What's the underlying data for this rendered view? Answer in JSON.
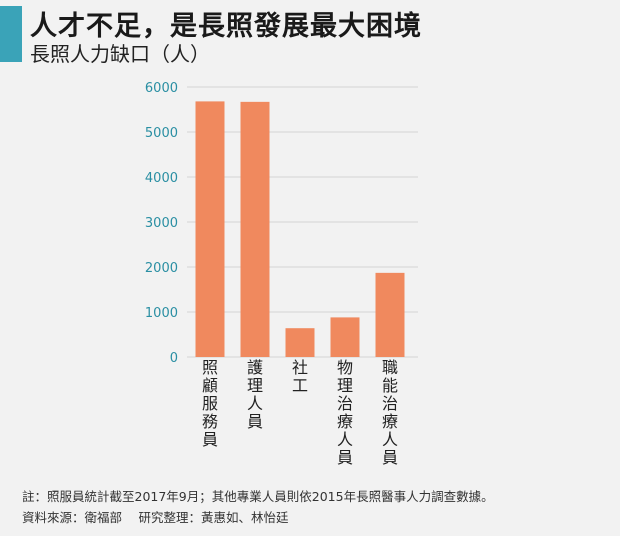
{
  "header": {
    "title": "人才不足，是長照發展最大困境",
    "subtitle": "長照人力缺口（人）"
  },
  "colors": {
    "accent": "#3aa3b8",
    "bar": "#f0895e",
    "tick_label": "#2a8fa3",
    "grid": "#d4d4d4"
  },
  "chart_data": {
    "type": "bar",
    "categories": [
      "照顧服務員",
      "護理人員",
      "社工",
      "物理治療人員",
      "職能治療人員"
    ],
    "values": [
      5680,
      5670,
      640,
      880,
      1870
    ],
    "ylim": [
      0,
      6000
    ],
    "yticks": [
      "0",
      "1000",
      "2000",
      "3000",
      "4000",
      "5000",
      "6000"
    ],
    "grid": true,
    "title": "長照人力缺口（人）",
    "xlabel": "",
    "ylabel": ""
  },
  "footer": {
    "note": "註：照服員統計截至2017年9月；其他專業人員則依2015年長照醫事人力調查數據。",
    "source": "資料來源：衛福部　 研究整理：黃惠如、林怡廷"
  }
}
